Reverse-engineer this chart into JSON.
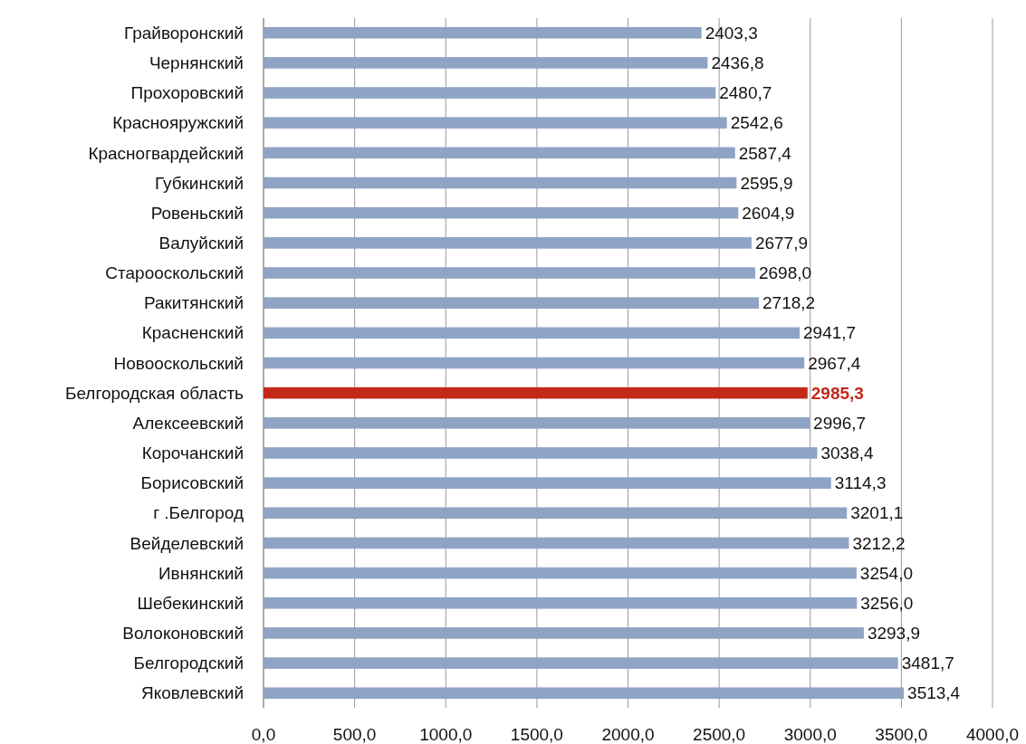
{
  "chart_data": {
    "type": "bar",
    "orientation": "horizontal",
    "categories": [
      "Грайворонский",
      "Чернянский",
      "Прохоровский",
      "Краснояружский",
      "Красногвардейский",
      "Губкинский",
      "Ровеньский",
      "Валуйский",
      "Старооскольский",
      "Ракитянский",
      "Красненский",
      "Новооскольский",
      "Белгородская область",
      "Алексеевский ",
      "Корочанский",
      "Борисовский",
      "г .Белгород",
      "Вейделевский",
      "Ивнянский",
      "Шебекинский",
      "Волоконовский",
      "Белгородский",
      "Яковлевский"
    ],
    "values": [
      2403.3,
      2436.8,
      2480.7,
      2542.6,
      2587.4,
      2595.9,
      2604.9,
      2677.9,
      2698.0,
      2718.2,
      2941.7,
      2967.4,
      2985.3,
      2996.7,
      3038.4,
      3114.3,
      3201.1,
      3212.2,
      3254.0,
      3256.0,
      3293.9,
      3481.7,
      3513.4
    ],
    "value_labels": [
      "2403,3",
      "2436,8",
      "2480,7",
      "2542,6",
      "2587,4",
      "2595,9",
      "2604,9",
      "2677,9",
      "2698,0",
      "2718,2",
      "2941,7",
      "2967,4",
      "2985,3",
      "2996,7",
      "3038,4",
      "3114,3",
      "3201,1",
      "3212,2",
      "3254,0",
      "3256,0",
      "3293,9",
      "3481,7",
      "3513,4"
    ],
    "colors": [
      "#8fa3c4",
      "#8fa3c4",
      "#8fa3c4",
      "#8fa3c4",
      "#8fa3c4",
      "#8fa3c4",
      "#8fa3c4",
      "#8fa3c4",
      "#8fa3c4",
      "#8fa3c4",
      "#8fa3c4",
      "#8fa3c4",
      "#c4281a",
      "#8fa3c4",
      "#8fa3c4",
      "#8fa3c4",
      "#8fa3c4",
      "#8fa3c4",
      "#8fa3c4",
      "#8fa3c4",
      "#8fa3c4",
      "#8fa3c4",
      "#8fa3c4"
    ],
    "xlim": [
      0,
      4000
    ],
    "xticks": [
      {
        "value": 0,
        "label": "0,0"
      },
      {
        "value": 500,
        "label": "500,0"
      },
      {
        "value": 1000,
        "label": "1000,0"
      },
      {
        "value": 1500,
        "label": "1500,0"
      },
      {
        "value": 2000,
        "label": "2000,0"
      },
      {
        "value": 2500,
        "label": "2500,0"
      },
      {
        "value": 3000,
        "label": "3000,0"
      },
      {
        "value": 3500,
        "label": "3500,0"
      },
      {
        "value": 4000,
        "label": "4000,0"
      }
    ],
    "grid": "x"
  }
}
